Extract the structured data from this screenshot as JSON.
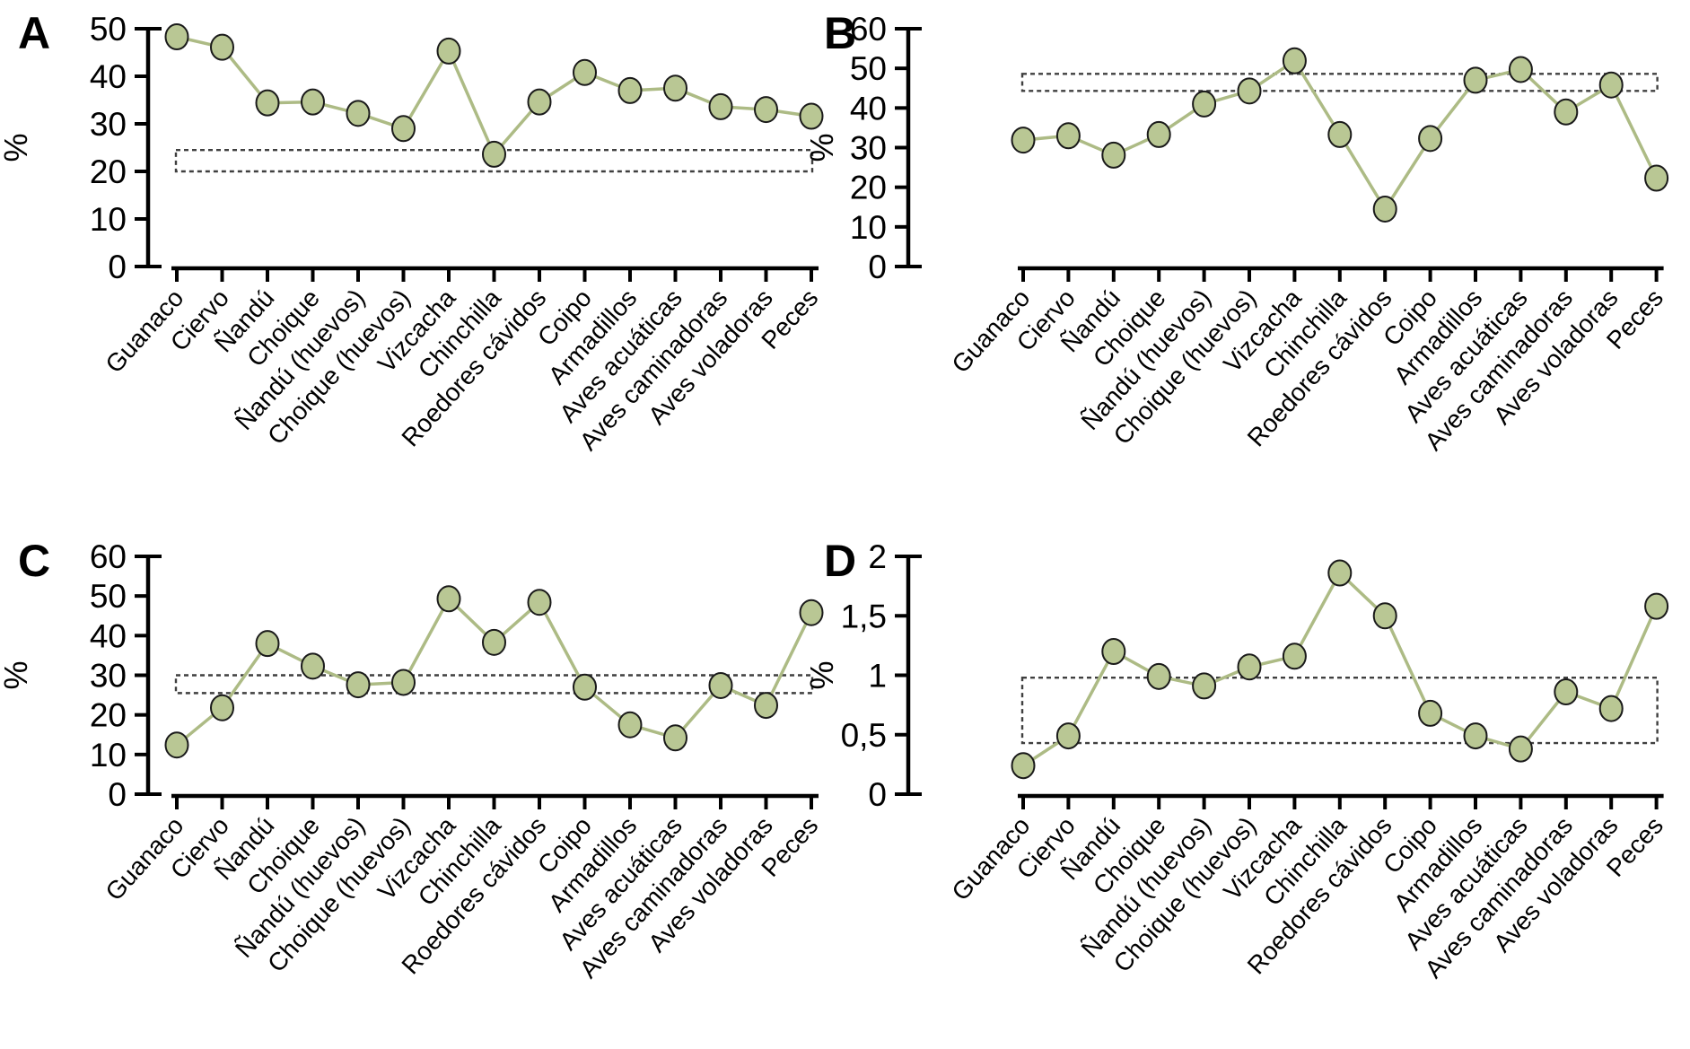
{
  "figure": {
    "description": "Four-panel line chart of percentage values per prey category",
    "panel_labels": [
      "A",
      "B",
      "C",
      "D"
    ],
    "styles": {
      "line_color": "#adbb85",
      "marker_fill": "#b9c794",
      "marker_stroke": "#1a1a1a",
      "band_color": "#3f3f3f",
      "axis_color": "#000000"
    }
  },
  "chart_data": [
    {
      "type": "line",
      "panel_label": "A",
      "ylabel": "%",
      "categories": [
        "Guanaco",
        "Ciervo",
        "Ñandú",
        "Choique",
        "Ñandú (huevos)",
        "Choique (huevos)",
        "Vizcacha",
        "Chinchilla",
        "Roedores cávidos",
        "Coipo",
        "Armadillos",
        "Aves acuáticas",
        "Aves caminadoras",
        "Aves voladoras",
        "Peces"
      ],
      "values": [
        48.3,
        46.1,
        34.4,
        34.6,
        32.2,
        29.0,
        45.3,
        23.6,
        34.6,
        40.8,
        37.0,
        37.5,
        33.6,
        33.0,
        31.6
      ],
      "ylim": [
        0,
        50
      ],
      "ytick_labels": [
        "0",
        "10",
        "20",
        "30",
        "40",
        "50"
      ],
      "grid": false,
      "legend": null,
      "reference_band": {
        "ymin": 20.0,
        "ymax": 24.5,
        "style": "dashed"
      }
    },
    {
      "type": "line",
      "panel_label": "B",
      "ylabel": "%",
      "categories": [
        "Guanaco",
        "Ciervo",
        "Ñandú",
        "Choique",
        "Ñandú (huevos)",
        "Choique (huevos)",
        "Vizcacha",
        "Chinchilla",
        "Roedores cávidos",
        "Coipo",
        "Armadillos",
        "Aves acuáticas",
        "Aves caminadoras",
        "Aves voladoras",
        "Peces"
      ],
      "values": [
        31.9,
        33.0,
        28.1,
        33.3,
        41.0,
        44.3,
        51.9,
        33.3,
        14.5,
        32.3,
        47.0,
        49.7,
        39.0,
        45.8,
        22.3
      ],
      "ylim": [
        0,
        60
      ],
      "ytick_labels": [
        "0",
        "10",
        "20",
        "30",
        "40",
        "50",
        "60"
      ],
      "grid": false,
      "legend": null,
      "reference_band": {
        "ymin": 44.3,
        "ymax": 48.6,
        "style": "dashed"
      }
    },
    {
      "type": "line",
      "panel_label": "C",
      "ylabel": "%",
      "categories": [
        "Guanaco",
        "Ciervo",
        "Ñandú",
        "Choique",
        "Ñandú (huevos)",
        "Choique (huevos)",
        "Vizcacha",
        "Chinchilla",
        "Roedores cávidos",
        "Coipo",
        "Armadillos",
        "Aves acuáticas",
        "Aves caminadoras",
        "Aves voladoras",
        "Peces"
      ],
      "values": [
        12.4,
        21.8,
        38.0,
        32.3,
        27.6,
        28.2,
        49.3,
        38.3,
        48.4,
        27.0,
        17.5,
        14.2,
        27.4,
        22.4,
        45.8
      ],
      "ylim": [
        0,
        60
      ],
      "ytick_labels": [
        "0",
        "10",
        "20",
        "30",
        "40",
        "50",
        "60"
      ],
      "grid": false,
      "legend": null,
      "reference_band": {
        "ymin": 25.5,
        "ymax": 30.0,
        "style": "dashed"
      }
    },
    {
      "type": "line",
      "panel_label": "D",
      "ylabel": "%",
      "categories": [
        "Guanaco",
        "Ciervo",
        "Ñandú",
        "Choique",
        "Ñandú (huevos)",
        "Choique (huevos)",
        "Vizcacha",
        "Chinchilla",
        "Roedores cávidos",
        "Coipo",
        "Armadillos",
        "Aves acuáticas",
        "Aves caminadoras",
        "Aves voladoras",
        "Peces"
      ],
      "values": [
        0.24,
        0.49,
        1.2,
        0.99,
        0.91,
        1.07,
        1.16,
        1.86,
        1.5,
        0.68,
        0.49,
        0.38,
        0.86,
        0.72,
        1.58
      ],
      "ylim": [
        0,
        2
      ],
      "ytick_labels": [
        "0",
        "0,5",
        "1",
        "1,5",
        "2"
      ],
      "grid": false,
      "legend": null,
      "reference_band": {
        "ymin": 0.43,
        "ymax": 0.98,
        "style": "dashed"
      }
    }
  ]
}
